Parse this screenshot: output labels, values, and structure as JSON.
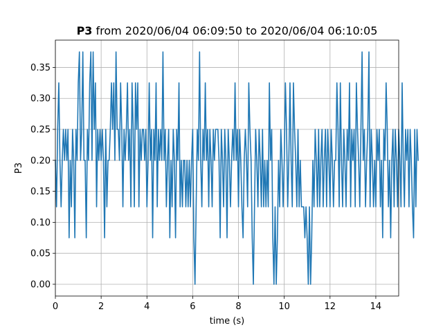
{
  "chart_data": {
    "type": "line",
    "title_bold": "P3",
    "title_rest": " from 2020/06/04 06:09:50 to 2020/06/04 06:10:05",
    "xlabel": "time (s)",
    "ylabel": "P3",
    "xlim": [
      0,
      15
    ],
    "ylim": [
      -0.019,
      0.394
    ],
    "x_ticks": [
      0,
      2,
      4,
      6,
      8,
      10,
      12,
      14
    ],
    "y_ticks": [
      0.0,
      0.05,
      0.1,
      0.15,
      0.2,
      0.25,
      0.3,
      0.35
    ],
    "y_tick_labels": [
      "0.00",
      "0.05",
      "0.10",
      "0.15",
      "0.20",
      "0.25",
      "0.30",
      "0.35"
    ],
    "grid": true,
    "series_color": "#1f77b4",
    "series": [
      {
        "x_start": 0,
        "x_step": 0.05,
        "values": [
          0.2,
          0.125,
          0.25,
          0.325,
          0.2,
          0.125,
          0.2,
          0.25,
          0.2,
          0.25,
          0.2,
          0.25,
          0.075,
          0.2,
          0.125,
          0.25,
          0.2,
          0.075,
          0.25,
          0.2,
          0.325,
          0.375,
          0.2,
          0.25,
          0.375,
          0.2,
          0.2,
          0.075,
          0.25,
          0.2,
          0.325,
          0.375,
          0.2,
          0.375,
          0.25,
          0.325,
          0.125,
          0.25,
          0.2,
          0.25,
          0.2,
          0.25,
          0.2,
          0.075,
          0.25,
          0.125,
          0.2,
          0.2,
          0.25,
          0.325,
          0.25,
          0.325,
          0.2,
          0.375,
          0.25,
          0.25,
          0.2,
          0.325,
          0.25,
          0.125,
          0.25,
          0.2,
          0.25,
          0.325,
          0.2,
          0.25,
          0.125,
          0.325,
          0.25,
          0.125,
          0.325,
          0.25,
          0.325,
          0.125,
          0.25,
          0.2,
          0.25,
          0.25,
          0.2,
          0.25,
          0.125,
          0.2,
          0.325,
          0.2,
          0.25,
          0.075,
          0.25,
          0.2,
          0.325,
          0.125,
          0.25,
          0.2,
          0.25,
          0.2,
          0.375,
          0.2,
          0.25,
          0.125,
          0.2,
          0.25,
          0.075,
          0.2,
          0.125,
          0.25,
          0.2,
          0.075,
          0.25,
          0.2,
          0.325,
          0.125,
          0.2,
          0.125,
          0.2,
          0.2,
          0.125,
          0.2,
          0.125,
          0.2,
          0.125,
          0.2,
          0.25,
          0.075,
          0.0,
          0.125,
          0.25,
          0.2,
          0.375,
          0.2,
          0.125,
          0.25,
          0.2,
          0.325,
          0.2,
          0.25,
          0.125,
          0.25,
          0.2,
          0.125,
          0.25,
          0.2,
          0.25,
          0.25,
          0.25,
          0.2,
          0.075,
          0.25,
          0.2,
          0.125,
          0.25,
          0.2,
          0.075,
          0.25,
          0.2,
          0.125,
          0.2,
          0.25,
          0.2,
          0.325,
          0.2,
          0.25,
          0.125,
          0.25,
          0.2,
          0.125,
          0.075,
          0.2,
          0.25,
          0.2,
          0.125,
          0.325,
          0.25,
          0.2,
          0.075,
          0.0,
          0.125,
          0.25,
          0.2,
          0.125,
          0.25,
          0.2,
          0.125,
          0.25,
          0.125,
          0.2,
          0.125,
          0.2,
          0.125,
          0.325,
          0.2,
          0.25,
          0.075,
          0.0,
          0.125,
          0.0,
          0.075,
          0.2,
          0.125,
          0.25,
          0.2,
          0.125,
          0.2,
          0.325,
          0.25,
          0.125,
          0.2,
          0.325,
          0.2,
          0.125,
          0.325,
          0.25,
          0.2,
          0.125,
          0.25,
          0.125,
          0.2,
          0.125,
          0.125,
          0.125,
          0.075,
          0.125,
          0.075,
          0.0,
          0.125,
          0.0,
          0.075,
          0.2,
          0.125,
          0.25,
          0.2,
          0.125,
          0.25,
          0.125,
          0.2,
          0.25,
          0.125,
          0.2,
          0.25,
          0.125,
          0.25,
          0.2,
          0.125,
          0.25,
          0.2,
          0.125,
          0.2,
          0.2,
          0.325,
          0.25,
          0.125,
          0.325,
          0.2,
          0.125,
          0.25,
          0.2,
          0.125,
          0.25,
          0.2,
          0.325,
          0.125,
          0.25,
          0.2,
          0.25,
          0.125,
          0.325,
          0.25,
          0.2,
          0.125,
          0.25,
          0.375,
          0.2,
          0.25,
          0.125,
          0.2,
          0.25,
          0.375,
          0.125,
          0.25,
          0.2,
          0.125,
          0.2,
          0.125,
          0.25,
          0.2,
          0.25,
          0.125,
          0.2,
          0.075,
          0.25,
          0.2,
          0.325,
          0.25,
          0.125,
          0.2,
          0.075,
          0.2,
          0.25,
          0.125,
          0.25,
          0.2,
          0.125,
          0.25,
          0.2,
          0.125,
          0.325,
          0.2,
          0.125,
          0.25,
          0.2,
          0.25,
          0.125,
          0.25,
          0.2,
          0.125,
          0.075,
          0.25,
          0.125,
          0.25,
          0.2
        ]
      }
    ]
  }
}
